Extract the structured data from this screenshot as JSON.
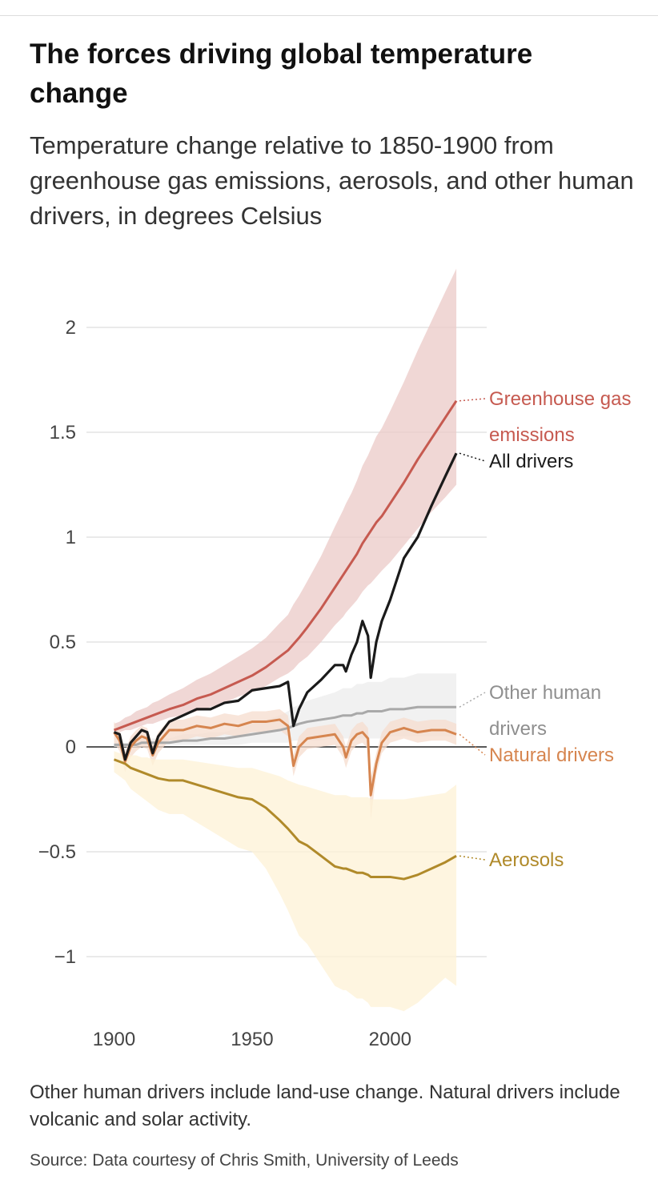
{
  "title": "The forces driving global temperature change",
  "subtitle": "Temperature change relative to 1850-1900 from greenhouse gas emissions, aerosols, and other human drivers, in degrees Celsius",
  "note": "Other human drivers include land-use change. Natural drivers include volcanic and solar activity.",
  "source": "Source: Data courtesy of Chris Smith, University of Leeds",
  "chart_data": {
    "type": "line",
    "x": [
      1900,
      1902,
      1904,
      1906,
      1908,
      1910,
      1912,
      1914,
      1916,
      1920,
      1925,
      1930,
      1935,
      1940,
      1945,
      1950,
      1955,
      1960,
      1963,
      1965,
      1967,
      1970,
      1975,
      1980,
      1983,
      1984,
      1986,
      1988,
      1990,
      1992,
      1993,
      1995,
      1997,
      2000,
      2005,
      2010,
      2015,
      2020,
      2024
    ],
    "xlim": [
      1890,
      2035
    ],
    "xticks": [
      1900,
      1950,
      2000
    ],
    "ylim": [
      -1.3,
      2.3
    ],
    "yticks": [
      2,
      1.5,
      1,
      0.5,
      0,
      {
        "value": -0.5,
        "label": "−0.5"
      },
      {
        "value": -1,
        "label": "−1"
      }
    ],
    "grid": true,
    "series": [
      {
        "name": "Greenhouse gas emissions",
        "color": "#c65a50",
        "band_color": "#ebc9c7",
        "values": [
          0.08,
          0.09,
          0.1,
          0.11,
          0.12,
          0.13,
          0.14,
          0.15,
          0.16,
          0.18,
          0.2,
          0.23,
          0.25,
          0.28,
          0.31,
          0.34,
          0.38,
          0.43,
          0.46,
          0.49,
          0.52,
          0.57,
          0.66,
          0.76,
          0.82,
          0.84,
          0.88,
          0.92,
          0.97,
          1.01,
          1.03,
          1.07,
          1.1,
          1.16,
          1.26,
          1.37,
          1.47,
          1.57,
          1.65
        ],
        "high": [
          0.11,
          0.12,
          0.14,
          0.15,
          0.17,
          0.18,
          0.19,
          0.21,
          0.22,
          0.25,
          0.28,
          0.32,
          0.35,
          0.39,
          0.43,
          0.47,
          0.52,
          0.59,
          0.63,
          0.68,
          0.72,
          0.79,
          0.91,
          1.05,
          1.13,
          1.16,
          1.21,
          1.27,
          1.34,
          1.39,
          1.42,
          1.48,
          1.52,
          1.6,
          1.74,
          1.89,
          2.03,
          2.17,
          2.28
        ],
        "low": [
          0.06,
          0.07,
          0.08,
          0.08,
          0.09,
          0.1,
          0.11,
          0.11,
          0.12,
          0.14,
          0.15,
          0.17,
          0.19,
          0.21,
          0.24,
          0.26,
          0.29,
          0.33,
          0.35,
          0.37,
          0.4,
          0.43,
          0.5,
          0.58,
          0.62,
          0.64,
          0.67,
          0.7,
          0.74,
          0.77,
          0.78,
          0.81,
          0.84,
          0.88,
          0.96,
          1.04,
          1.12,
          1.19,
          1.25
        ]
      },
      {
        "name": "All drivers",
        "color": "#1a1a1a",
        "values": [
          0.07,
          0.06,
          -0.06,
          0.02,
          0.05,
          0.08,
          0.07,
          -0.03,
          0.05,
          0.12,
          0.15,
          0.18,
          0.18,
          0.21,
          0.22,
          0.27,
          0.28,
          0.29,
          0.31,
          0.1,
          0.18,
          0.26,
          0.32,
          0.39,
          0.39,
          0.36,
          0.44,
          0.5,
          0.6,
          0.53,
          0.33,
          0.5,
          0.6,
          0.7,
          0.9,
          1.0,
          1.15,
          1.29,
          1.4
        ]
      },
      {
        "name": "Other human drivers",
        "color": "#a9a9a9",
        "band_color": "#ececec",
        "values": [
          0.01,
          0.01,
          0.01,
          0.01,
          0.01,
          0.02,
          0.02,
          0.02,
          0.02,
          0.02,
          0.03,
          0.03,
          0.04,
          0.04,
          0.05,
          0.06,
          0.07,
          0.08,
          0.09,
          0.1,
          0.11,
          0.12,
          0.13,
          0.14,
          0.15,
          0.15,
          0.15,
          0.16,
          0.16,
          0.17,
          0.17,
          0.17,
          0.17,
          0.18,
          0.18,
          0.19,
          0.19,
          0.19,
          0.19
        ],
        "high": [
          0.02,
          0.02,
          0.02,
          0.02,
          0.02,
          0.04,
          0.04,
          0.04,
          0.04,
          0.04,
          0.06,
          0.06,
          0.07,
          0.07,
          0.09,
          0.11,
          0.13,
          0.15,
          0.17,
          0.19,
          0.2,
          0.22,
          0.24,
          0.26,
          0.28,
          0.28,
          0.28,
          0.3,
          0.3,
          0.31,
          0.31,
          0.31,
          0.31,
          0.33,
          0.33,
          0.35,
          0.35,
          0.35,
          0.35
        ],
        "low": [
          0,
          0,
          0,
          0,
          0,
          0.01,
          0.01,
          0.01,
          0.01,
          0.01,
          0.01,
          0.01,
          0.01,
          0.01,
          0.01,
          0.02,
          0.02,
          0.02,
          0.02,
          0.03,
          0.03,
          0.03,
          0.03,
          0.04,
          0.04,
          0.04,
          0.04,
          0.04,
          0.04,
          0.04,
          0.04,
          0.04,
          0.04,
          0.05,
          0.05,
          0.05,
          0.05,
          0.05,
          0.05
        ]
      },
      {
        "name": "Natural drivers",
        "color": "#d6854f",
        "band_color": "#f6dccd",
        "values": [
          0.07,
          0.03,
          -0.07,
          0,
          0.03,
          0.05,
          0.04,
          -0.04,
          0.02,
          0.08,
          0.08,
          0.1,
          0.09,
          0.11,
          0.1,
          0.12,
          0.12,
          0.13,
          0.1,
          -0.09,
          0,
          0.04,
          0.05,
          0.06,
          0,
          -0.05,
          0.03,
          0.06,
          0.07,
          0.04,
          -0.23,
          -0.08,
          0.02,
          0.07,
          0.09,
          0.07,
          0.08,
          0.08,
          0.06
        ],
        "high": [
          0.12,
          0.08,
          -0.02,
          0.05,
          0.08,
          0.1,
          0.09,
          0.01,
          0.07,
          0.13,
          0.13,
          0.15,
          0.14,
          0.16,
          0.15,
          0.17,
          0.17,
          0.18,
          0.15,
          -0.04,
          0.05,
          0.09,
          0.1,
          0.11,
          0.05,
          0,
          0.08,
          0.11,
          0.12,
          0.09,
          -0.15,
          -0.03,
          0.07,
          0.12,
          0.14,
          0.12,
          0.13,
          0.13,
          0.11
        ],
        "low": [
          0.02,
          -0.02,
          -0.12,
          -0.05,
          -0.02,
          0,
          -0.01,
          -0.09,
          -0.03,
          0.03,
          0.03,
          0.05,
          0.04,
          0.06,
          0.05,
          0.07,
          0.07,
          0.08,
          0.05,
          -0.14,
          -0.05,
          -0.01,
          0,
          0.01,
          -0.05,
          -0.1,
          -0.02,
          0.01,
          0.02,
          -0.01,
          -0.35,
          -0.13,
          -0.03,
          0.02,
          0.04,
          0.02,
          0.03,
          0.03,
          0.01
        ]
      },
      {
        "name": "Aerosols",
        "color": "#b08a2a",
        "band_color": "#fdf2d6",
        "values": [
          -0.06,
          -0.07,
          -0.08,
          -0.1,
          -0.11,
          -0.12,
          -0.13,
          -0.14,
          -0.15,
          -0.16,
          -0.16,
          -0.18,
          -0.2,
          -0.22,
          -0.24,
          -0.25,
          -0.29,
          -0.35,
          -0.39,
          -0.42,
          -0.45,
          -0.47,
          -0.52,
          -0.57,
          -0.58,
          -0.58,
          -0.59,
          -0.6,
          -0.6,
          -0.61,
          -0.62,
          -0.62,
          -0.62,
          -0.62,
          -0.63,
          -0.61,
          -0.58,
          -0.55,
          -0.52
        ],
        "high": [
          -0.02,
          -0.03,
          -0.03,
          -0.04,
          -0.04,
          -0.05,
          -0.05,
          -0.06,
          -0.06,
          -0.06,
          -0.06,
          -0.07,
          -0.08,
          -0.09,
          -0.1,
          -0.1,
          -0.12,
          -0.14,
          -0.16,
          -0.17,
          -0.18,
          -0.19,
          -0.21,
          -0.23,
          -0.23,
          -0.23,
          -0.24,
          -0.24,
          -0.24,
          -0.24,
          -0.25,
          -0.25,
          -0.25,
          -0.25,
          -0.25,
          -0.24,
          -0.23,
          -0.22,
          -0.18
        ],
        "low": [
          -0.12,
          -0.14,
          -0.16,
          -0.2,
          -0.22,
          -0.24,
          -0.26,
          -0.28,
          -0.3,
          -0.32,
          -0.32,
          -0.36,
          -0.4,
          -0.44,
          -0.48,
          -0.5,
          -0.58,
          -0.7,
          -0.78,
          -0.84,
          -0.9,
          -0.94,
          -1.04,
          -1.14,
          -1.16,
          -1.16,
          -1.18,
          -1.2,
          -1.2,
          -1.22,
          -1.24,
          -1.24,
          -1.24,
          -1.24,
          -1.26,
          -1.22,
          -1.16,
          -1.1,
          -1.14
        ]
      }
    ]
  }
}
